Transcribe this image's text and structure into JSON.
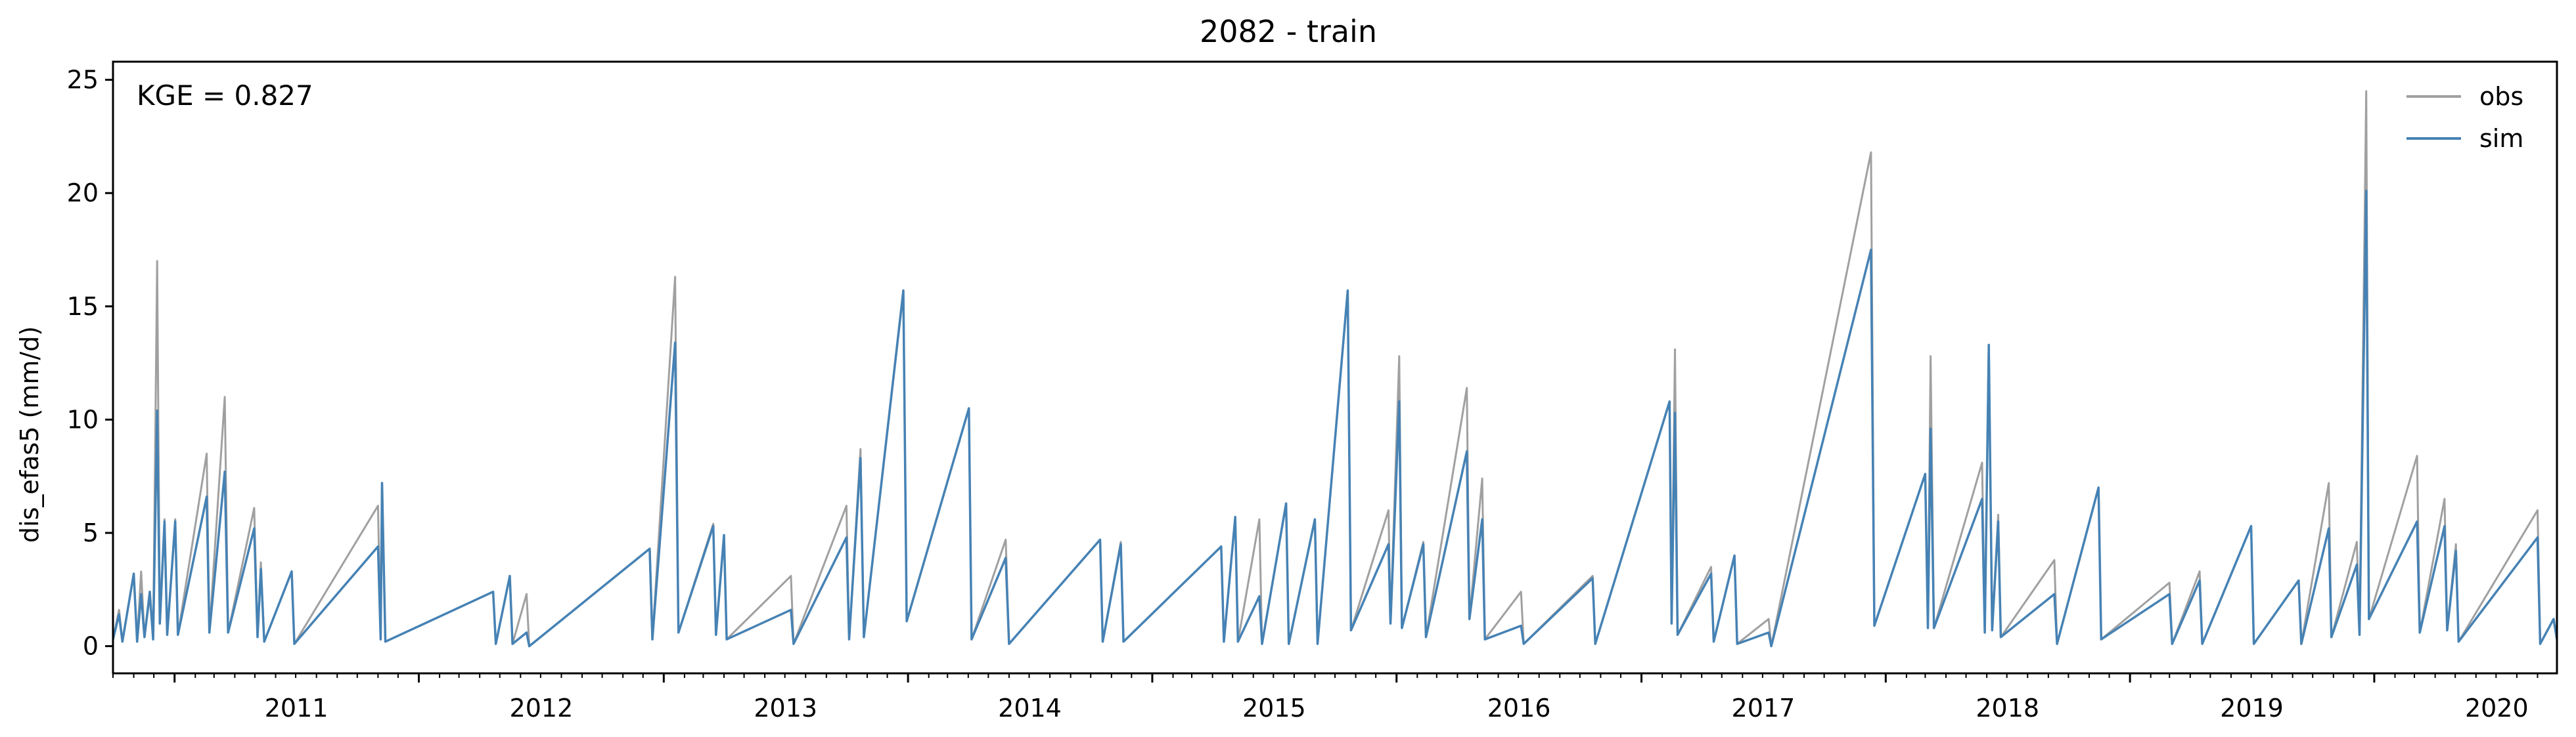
{
  "chart_data": {
    "type": "line",
    "title": "2082 - train",
    "ylabel": "dis_efas5 (mm/d)",
    "xlabel": "",
    "annotation": "KGE = 0.827",
    "x_range": [
      "2010-10-01",
      "2020-09-30"
    ],
    "ylim": [
      -1.2,
      25.8
    ],
    "y_ticks": [
      0,
      5,
      10,
      15,
      20,
      25
    ],
    "x_ticks": [
      "2011",
      "2012",
      "2013",
      "2014",
      "2015",
      "2016",
      "2017",
      "2018",
      "2019",
      "2020"
    ],
    "grid": false,
    "legend_position": "top-right",
    "colors": {
      "obs": "#a0a0a0",
      "sim": "#4682b4"
    },
    "series": [
      {
        "name": "obs",
        "points": [
          [
            "2010-10-01",
            0.3
          ],
          [
            "2010-10-10",
            1.6
          ],
          [
            "2010-10-15",
            0.2
          ],
          [
            "2010-11-01",
            3.2
          ],
          [
            "2010-11-06",
            0.2
          ],
          [
            "2010-11-12",
            3.3
          ],
          [
            "2010-11-17",
            0.4
          ],
          [
            "2010-11-25",
            2.2
          ],
          [
            "2010-11-30",
            0.3
          ],
          [
            "2010-12-06",
            17.0
          ],
          [
            "2010-12-10",
            1.0
          ],
          [
            "2010-12-17",
            5.6
          ],
          [
            "2010-12-21",
            0.5
          ],
          [
            "2011-01-02",
            5.6
          ],
          [
            "2011-01-06",
            0.5
          ],
          [
            "2011-02-18",
            8.5
          ],
          [
            "2011-02-22",
            0.6
          ],
          [
            "2011-03-17",
            11.0
          ],
          [
            "2011-03-22",
            0.6
          ],
          [
            "2011-04-30",
            6.1
          ],
          [
            "2011-05-05",
            0.4
          ],
          [
            "2011-05-10",
            3.7
          ],
          [
            "2011-05-15",
            0.2
          ],
          [
            "2011-06-25",
            3.3
          ],
          [
            "2011-06-29",
            0.1
          ],
          [
            "2011-11-01",
            6.2
          ],
          [
            "2011-11-05",
            0.3
          ],
          [
            "2011-11-07",
            7.2
          ],
          [
            "2011-11-12",
            0.2
          ],
          [
            "2012-04-21",
            2.4
          ],
          [
            "2012-04-25",
            0.1
          ],
          [
            "2012-05-16",
            3.1
          ],
          [
            "2012-05-20",
            0.1
          ],
          [
            "2012-06-10",
            2.3
          ],
          [
            "2012-06-14",
            0.0
          ],
          [
            "2012-12-11",
            4.3
          ],
          [
            "2012-12-15",
            0.3
          ],
          [
            "2013-01-18",
            16.3
          ],
          [
            "2013-01-23",
            0.6
          ],
          [
            "2013-03-16",
            5.4
          ],
          [
            "2013-03-20",
            0.5
          ],
          [
            "2013-04-01",
            4.8
          ],
          [
            "2013-04-05",
            0.3
          ],
          [
            "2013-07-10",
            3.1
          ],
          [
            "2013-07-14",
            0.1
          ],
          [
            "2013-10-01",
            6.2
          ],
          [
            "2013-10-05",
            0.3
          ],
          [
            "2013-10-22",
            8.7
          ],
          [
            "2013-10-27",
            0.4
          ],
          [
            "2013-12-25",
            15.6
          ],
          [
            "2013-12-30",
            1.1
          ],
          [
            "2014-04-02",
            10.5
          ],
          [
            "2014-04-06",
            0.3
          ],
          [
            "2014-05-27",
            4.7
          ],
          [
            "2014-06-01",
            0.1
          ],
          [
            "2014-10-15",
            4.7
          ],
          [
            "2014-10-19",
            0.2
          ],
          [
            "2014-11-15",
            4.6
          ],
          [
            "2014-11-19",
            0.2
          ],
          [
            "2015-04-14",
            4.4
          ],
          [
            "2015-04-18",
            0.2
          ],
          [
            "2015-05-05",
            5.7
          ],
          [
            "2015-05-09",
            0.2
          ],
          [
            "2015-06-10",
            5.6
          ],
          [
            "2015-06-14",
            0.1
          ],
          [
            "2015-07-20",
            6.3
          ],
          [
            "2015-07-24",
            0.1
          ],
          [
            "2015-09-01",
            5.6
          ],
          [
            "2015-09-05",
            0.1
          ],
          [
            "2015-10-20",
            15.7
          ],
          [
            "2015-10-25",
            0.7
          ],
          [
            "2015-12-20",
            6.0
          ],
          [
            "2015-12-23",
            1.0
          ],
          [
            "2016-01-05",
            12.8
          ],
          [
            "2016-01-09",
            0.8
          ],
          [
            "2016-02-10",
            4.6
          ],
          [
            "2016-02-14",
            0.4
          ],
          [
            "2016-04-15",
            11.4
          ],
          [
            "2016-04-19",
            1.2
          ],
          [
            "2016-05-08",
            7.4
          ],
          [
            "2016-05-12",
            0.3
          ],
          [
            "2016-07-05",
            2.4
          ],
          [
            "2016-07-09",
            0.1
          ],
          [
            "2016-10-20",
            3.1
          ],
          [
            "2016-10-24",
            0.1
          ],
          [
            "2017-02-12",
            10.8
          ],
          [
            "2017-02-15",
            1.0
          ],
          [
            "2017-02-20",
            13.1
          ],
          [
            "2017-02-24",
            0.5
          ],
          [
            "2017-04-15",
            3.5
          ],
          [
            "2017-04-19",
            0.2
          ],
          [
            "2017-05-20",
            4.0
          ],
          [
            "2017-05-24",
            0.1
          ],
          [
            "2017-07-10",
            1.2
          ],
          [
            "2017-07-14",
            0.0
          ],
          [
            "2017-12-10",
            21.8
          ],
          [
            "2017-12-15",
            0.9
          ],
          [
            "2018-03-01",
            7.6
          ],
          [
            "2018-03-05",
            0.8
          ],
          [
            "2018-03-09",
            12.8
          ],
          [
            "2018-03-14",
            0.8
          ],
          [
            "2018-05-25",
            8.1
          ],
          [
            "2018-05-29",
            0.6
          ],
          [
            "2018-06-04",
            13.3
          ],
          [
            "2018-06-09",
            0.7
          ],
          [
            "2018-06-18",
            5.8
          ],
          [
            "2018-06-22",
            0.4
          ],
          [
            "2018-09-10",
            3.8
          ],
          [
            "2018-09-14",
            0.1
          ],
          [
            "2018-11-15",
            7.0
          ],
          [
            "2018-11-19",
            0.3
          ],
          [
            "2019-03-01",
            2.8
          ],
          [
            "2019-03-05",
            0.1
          ],
          [
            "2019-04-15",
            3.3
          ],
          [
            "2019-04-19",
            0.1
          ],
          [
            "2019-07-01",
            5.3
          ],
          [
            "2019-07-05",
            0.1
          ],
          [
            "2019-09-10",
            2.9
          ],
          [
            "2019-09-14",
            0.1
          ],
          [
            "2019-10-25",
            7.2
          ],
          [
            "2019-10-29",
            0.4
          ],
          [
            "2019-12-06",
            4.6
          ],
          [
            "2019-12-10",
            0.5
          ],
          [
            "2019-12-20",
            24.5
          ],
          [
            "2019-12-24",
            1.2
          ],
          [
            "2020-03-05",
            8.4
          ],
          [
            "2020-03-09",
            0.6
          ],
          [
            "2020-04-15",
            6.5
          ],
          [
            "2020-04-19",
            0.7
          ],
          [
            "2020-05-02",
            4.5
          ],
          [
            "2020-05-06",
            0.2
          ],
          [
            "2020-09-01",
            6.0
          ],
          [
            "2020-09-05",
            0.1
          ],
          [
            "2020-09-25",
            1.2
          ],
          [
            "2020-09-30",
            0.3
          ]
        ]
      },
      {
        "name": "sim",
        "points": [
          [
            "2010-10-01",
            0.3
          ],
          [
            "2010-10-10",
            1.4
          ],
          [
            "2010-10-15",
            0.2
          ],
          [
            "2010-11-01",
            3.2
          ],
          [
            "2010-11-06",
            0.2
          ],
          [
            "2010-11-12",
            2.3
          ],
          [
            "2010-11-17",
            0.4
          ],
          [
            "2010-11-25",
            2.4
          ],
          [
            "2010-11-30",
            0.3
          ],
          [
            "2010-12-06",
            10.4
          ],
          [
            "2010-12-10",
            1.0
          ],
          [
            "2010-12-17",
            5.5
          ],
          [
            "2010-12-21",
            0.5
          ],
          [
            "2011-01-02",
            5.5
          ],
          [
            "2011-01-06",
            0.5
          ],
          [
            "2011-02-18",
            6.6
          ],
          [
            "2011-02-22",
            0.6
          ],
          [
            "2011-03-17",
            7.7
          ],
          [
            "2011-03-22",
            0.6
          ],
          [
            "2011-04-30",
            5.2
          ],
          [
            "2011-05-05",
            0.4
          ],
          [
            "2011-05-10",
            3.4
          ],
          [
            "2011-05-15",
            0.2
          ],
          [
            "2011-06-25",
            3.3
          ],
          [
            "2011-06-29",
            0.1
          ],
          [
            "2011-11-01",
            4.4
          ],
          [
            "2011-11-05",
            0.3
          ],
          [
            "2011-11-07",
            7.2
          ],
          [
            "2011-11-12",
            0.2
          ],
          [
            "2012-04-21",
            2.4
          ],
          [
            "2012-04-25",
            0.1
          ],
          [
            "2012-05-16",
            3.1
          ],
          [
            "2012-05-20",
            0.1
          ],
          [
            "2012-06-10",
            0.6
          ],
          [
            "2012-06-14",
            0.0
          ],
          [
            "2012-12-11",
            4.3
          ],
          [
            "2012-12-15",
            0.3
          ],
          [
            "2013-01-18",
            13.4
          ],
          [
            "2013-01-23",
            0.6
          ],
          [
            "2013-03-16",
            5.3
          ],
          [
            "2013-03-20",
            0.5
          ],
          [
            "2013-04-01",
            4.9
          ],
          [
            "2013-04-05",
            0.3
          ],
          [
            "2013-07-10",
            1.6
          ],
          [
            "2013-07-14",
            0.1
          ],
          [
            "2013-10-01",
            4.8
          ],
          [
            "2013-10-05",
            0.3
          ],
          [
            "2013-10-22",
            8.3
          ],
          [
            "2013-10-27",
            0.4
          ],
          [
            "2013-12-25",
            15.7
          ],
          [
            "2013-12-30",
            1.1
          ],
          [
            "2014-04-02",
            10.5
          ],
          [
            "2014-04-06",
            0.3
          ],
          [
            "2014-05-27",
            3.9
          ],
          [
            "2014-06-01",
            0.1
          ],
          [
            "2014-10-15",
            4.7
          ],
          [
            "2014-10-19",
            0.2
          ],
          [
            "2014-11-15",
            4.5
          ],
          [
            "2014-11-19",
            0.2
          ],
          [
            "2015-04-14",
            4.4
          ],
          [
            "2015-04-18",
            0.2
          ],
          [
            "2015-05-05",
            5.7
          ],
          [
            "2015-05-09",
            0.2
          ],
          [
            "2015-06-10",
            2.2
          ],
          [
            "2015-06-14",
            0.1
          ],
          [
            "2015-07-20",
            6.3
          ],
          [
            "2015-07-24",
            0.1
          ],
          [
            "2015-09-01",
            5.6
          ],
          [
            "2015-09-05",
            0.1
          ],
          [
            "2015-10-20",
            15.7
          ],
          [
            "2015-10-25",
            0.7
          ],
          [
            "2015-12-20",
            4.5
          ],
          [
            "2015-12-23",
            1.0
          ],
          [
            "2016-01-05",
            10.8
          ],
          [
            "2016-01-09",
            0.8
          ],
          [
            "2016-02-10",
            4.5
          ],
          [
            "2016-02-14",
            0.4
          ],
          [
            "2016-04-15",
            8.6
          ],
          [
            "2016-04-19",
            1.2
          ],
          [
            "2016-05-08",
            5.6
          ],
          [
            "2016-05-12",
            0.3
          ],
          [
            "2016-07-05",
            0.9
          ],
          [
            "2016-07-09",
            0.1
          ],
          [
            "2016-10-20",
            3.0
          ],
          [
            "2016-10-24",
            0.1
          ],
          [
            "2017-02-12",
            10.8
          ],
          [
            "2017-02-15",
            1.0
          ],
          [
            "2017-02-20",
            10.3
          ],
          [
            "2017-02-24",
            0.5
          ],
          [
            "2017-04-15",
            3.2
          ],
          [
            "2017-04-19",
            0.2
          ],
          [
            "2017-05-20",
            4.0
          ],
          [
            "2017-05-24",
            0.1
          ],
          [
            "2017-07-10",
            0.6
          ],
          [
            "2017-07-14",
            0.0
          ],
          [
            "2017-12-10",
            17.5
          ],
          [
            "2017-12-15",
            0.9
          ],
          [
            "2018-03-01",
            7.6
          ],
          [
            "2018-03-05",
            0.8
          ],
          [
            "2018-03-09",
            9.6
          ],
          [
            "2018-03-14",
            0.8
          ],
          [
            "2018-05-25",
            6.5
          ],
          [
            "2018-05-29",
            0.6
          ],
          [
            "2018-06-04",
            13.3
          ],
          [
            "2018-06-09",
            0.7
          ],
          [
            "2018-06-18",
            5.5
          ],
          [
            "2018-06-22",
            0.4
          ],
          [
            "2018-09-10",
            2.3
          ],
          [
            "2018-09-14",
            0.1
          ],
          [
            "2018-11-15",
            7.0
          ],
          [
            "2018-11-19",
            0.3
          ],
          [
            "2019-03-01",
            2.3
          ],
          [
            "2019-03-05",
            0.1
          ],
          [
            "2019-04-15",
            2.9
          ],
          [
            "2019-04-19",
            0.1
          ],
          [
            "2019-07-01",
            5.3
          ],
          [
            "2019-07-05",
            0.1
          ],
          [
            "2019-09-10",
            2.9
          ],
          [
            "2019-09-14",
            0.1
          ],
          [
            "2019-10-25",
            5.2
          ],
          [
            "2019-10-29",
            0.4
          ],
          [
            "2019-12-06",
            3.6
          ],
          [
            "2019-12-10",
            0.5
          ],
          [
            "2019-12-20",
            20.1
          ],
          [
            "2019-12-24",
            1.2
          ],
          [
            "2020-03-05",
            5.5
          ],
          [
            "2020-03-09",
            0.6
          ],
          [
            "2020-04-15",
            5.3
          ],
          [
            "2020-04-19",
            0.7
          ],
          [
            "2020-05-02",
            4.2
          ],
          [
            "2020-05-06",
            0.2
          ],
          [
            "2020-09-01",
            4.8
          ],
          [
            "2020-09-05",
            0.1
          ],
          [
            "2020-09-25",
            1.2
          ],
          [
            "2020-09-30",
            0.3
          ]
        ]
      }
    ]
  }
}
